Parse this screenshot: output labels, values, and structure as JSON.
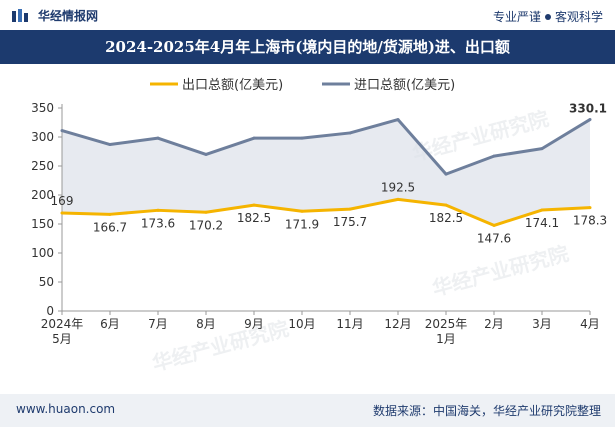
{
  "header": {
    "brand": "华经情报网",
    "tagline_a": "专业严谨",
    "tagline_b": "客观科学"
  },
  "title": "2024-2025年4月年上海市(境内目的地/货源地)进、出口额",
  "footer": {
    "website": "www.huaon.com",
    "source": "数据来源：中国海关，华经产业研究院整理"
  },
  "watermark": "华经产业研究院",
  "colors": {
    "export": "#f5b400",
    "import": "#6e7f9c",
    "band": "#dde1e9",
    "header": "#1c3a6e"
  },
  "chart_data": {
    "type": "line",
    "categories": [
      "2024年\n5月",
      "6月",
      "7月",
      "8月",
      "9月",
      "10月",
      "11月",
      "12月",
      "2025年\n1月",
      "2月",
      "3月",
      "4月"
    ],
    "series": [
      {
        "name": "出口总额(亿美元)",
        "values": [
          169,
          166.7,
          173.6,
          170.2,
          182.5,
          171.9,
          175.7,
          192.5,
          182.5,
          147.6,
          174.1,
          178.3
        ]
      },
      {
        "name": "进口总额(亿美元)",
        "values": [
          311,
          287,
          298,
          270,
          298,
          298,
          307,
          330,
          236,
          267,
          280,
          330.1
        ]
      }
    ],
    "labeled_series": [
      "出口总额(亿美元)"
    ],
    "labeled_points": {
      "进口总额(亿美元)": [
        11
      ]
    },
    "yticks": [
      0,
      50,
      100,
      150,
      200,
      250,
      300,
      350
    ],
    "ylim": [
      0,
      350
    ],
    "legend": "top-center",
    "grid": false
  }
}
